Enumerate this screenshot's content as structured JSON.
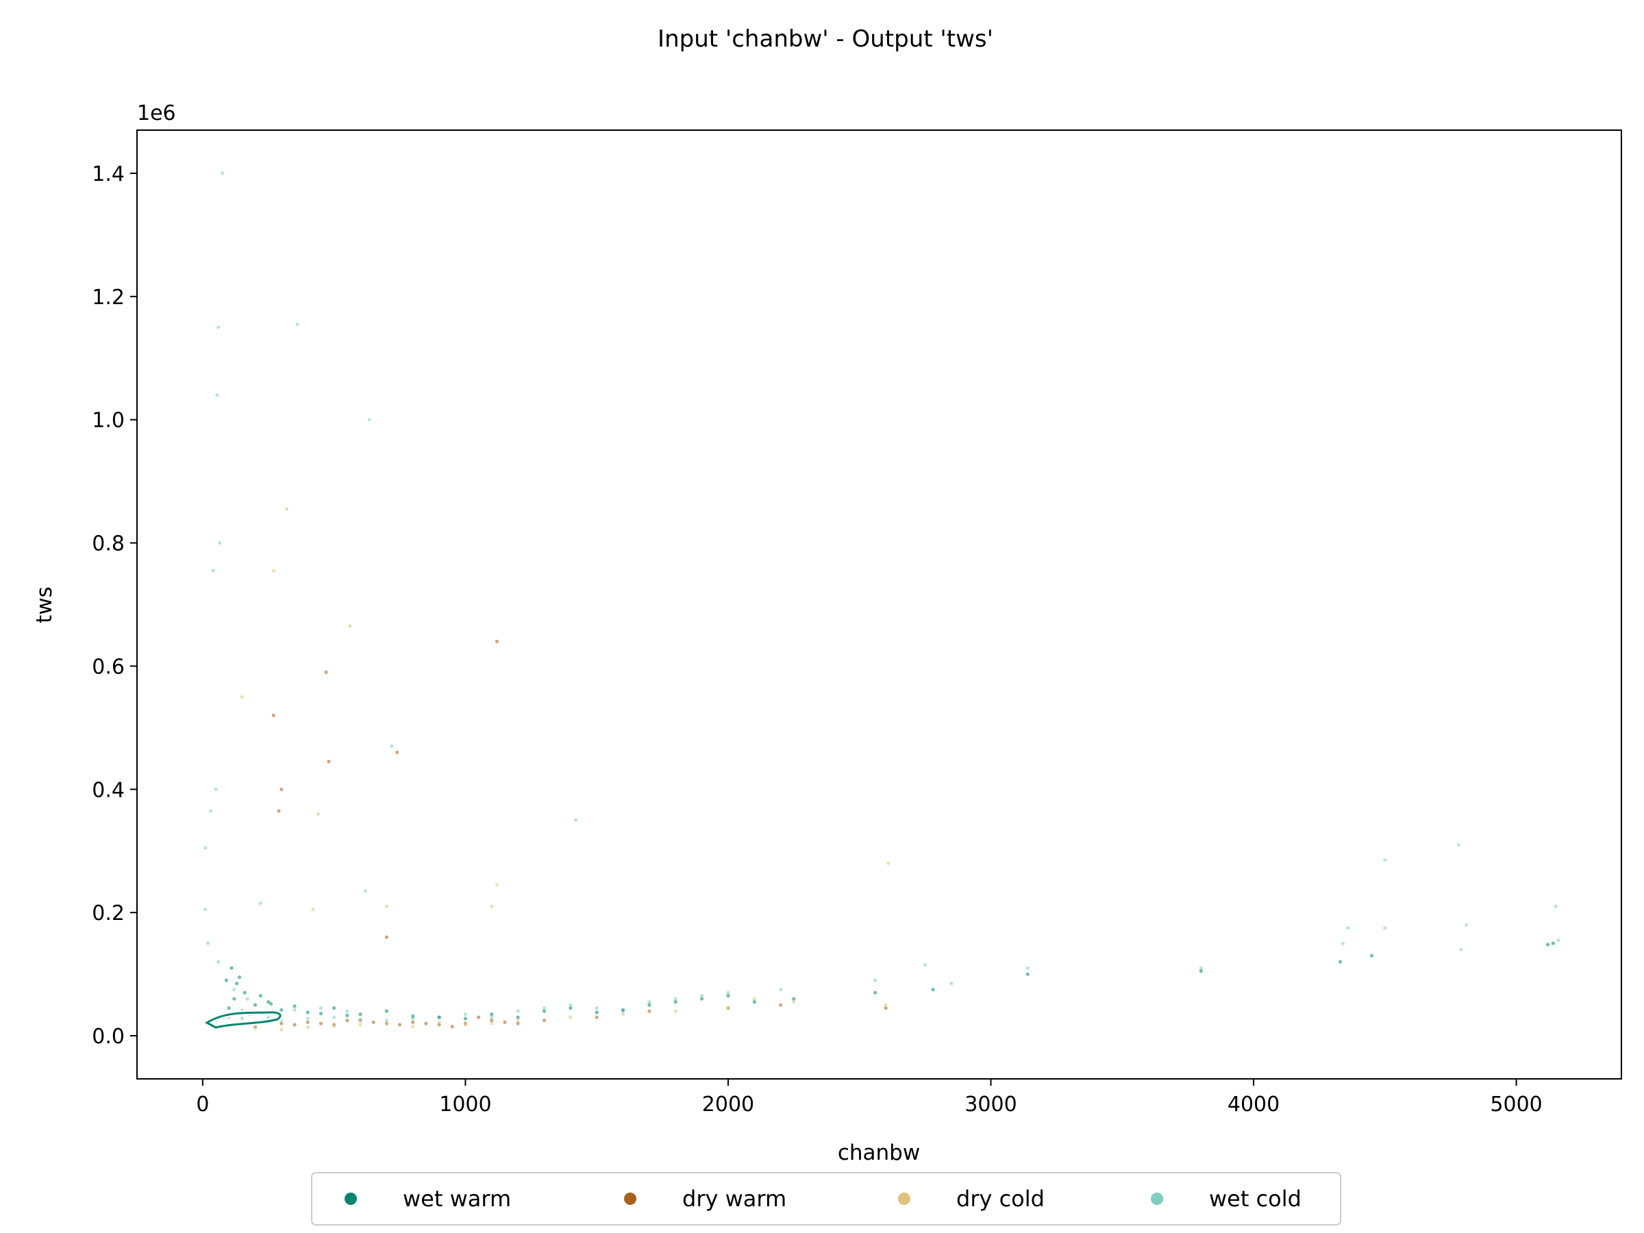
{
  "chart_data": {
    "type": "scatter",
    "title": "Input 'chanbw' - Output 'tws'",
    "xlabel": "chanbw",
    "ylabel": "tws",
    "y_offset_label": "1e6",
    "xlim": [
      -250,
      5400
    ],
    "ylim": [
      -70000,
      1470000
    ],
    "xticks": [
      0,
      1000,
      2000,
      3000,
      4000,
      5000
    ],
    "xtick_labels": [
      "0",
      "1000",
      "2000",
      "3000",
      "4000",
      "5000"
    ],
    "yticks": [
      0,
      200000,
      400000,
      600000,
      800000,
      1000000,
      1200000,
      1400000
    ],
    "ytick_labels": [
      "0.0",
      "0.2",
      "0.4",
      "0.6",
      "0.8",
      "1.0",
      "1.2",
      "1.4"
    ],
    "grid": false,
    "legend_position": "bottom-center",
    "series": [
      {
        "name": "wet warm",
        "color": "#018571",
        "points": [
          [
            100,
            45000
          ],
          [
            120,
            60000
          ],
          [
            150,
            40000
          ],
          [
            80,
            30000
          ],
          [
            200,
            50000
          ],
          [
            180,
            35000
          ],
          [
            250,
            55000
          ],
          [
            300,
            42000
          ],
          [
            400,
            38000
          ],
          [
            500,
            45000
          ],
          [
            600,
            35000
          ],
          [
            700,
            40000
          ],
          [
            800,
            32000
          ],
          [
            900,
            30000
          ],
          [
            1000,
            28000
          ],
          [
            1100,
            35000
          ],
          [
            1200,
            30000
          ],
          [
            1300,
            40000
          ],
          [
            1400,
            45000
          ],
          [
            1500,
            38000
          ],
          [
            1600,
            42000
          ],
          [
            1700,
            50000
          ],
          [
            1800,
            55000
          ],
          [
            1900,
            60000
          ],
          [
            2000,
            65000
          ],
          [
            2100,
            55000
          ],
          [
            2250,
            60000
          ],
          [
            2560,
            70000
          ],
          [
            2780,
            75000
          ],
          [
            3140,
            100000
          ],
          [
            3800,
            105000
          ],
          [
            4330,
            120000
          ],
          [
            4450,
            130000
          ],
          [
            5120,
            148000
          ],
          [
            5140,
            150000
          ],
          [
            90,
            90000
          ],
          [
            110,
            110000
          ],
          [
            130,
            85000
          ],
          [
            160,
            70000
          ],
          [
            140,
            95000
          ],
          [
            220,
            65000
          ],
          [
            260,
            52000
          ],
          [
            350,
            48000
          ],
          [
            450,
            36000
          ],
          [
            550,
            33000
          ]
        ]
      },
      {
        "name": "dry warm",
        "color": "#a6611a",
        "points": [
          [
            200,
            15000
          ],
          [
            300,
            20000
          ],
          [
            400,
            22000
          ],
          [
            500,
            18000
          ],
          [
            600,
            25000
          ],
          [
            700,
            20000
          ],
          [
            800,
            22000
          ],
          [
            900,
            18000
          ],
          [
            1000,
            20000
          ],
          [
            1100,
            25000
          ],
          [
            1150,
            22000
          ],
          [
            1050,
            30000
          ],
          [
            950,
            15000
          ],
          [
            850,
            20000
          ],
          [
            750,
            18000
          ],
          [
            650,
            22000
          ],
          [
            550,
            25000
          ],
          [
            450,
            20000
          ],
          [
            350,
            18000
          ],
          [
            250,
            25000
          ],
          [
            150,
            20000
          ],
          [
            1200,
            20000
          ],
          [
            1300,
            25000
          ],
          [
            1500,
            30000
          ],
          [
            1700,
            40000
          ],
          [
            2000,
            45000
          ],
          [
            2200,
            50000
          ],
          [
            2600,
            45000
          ],
          [
            270,
            520000
          ],
          [
            480,
            445000
          ],
          [
            740,
            460000
          ],
          [
            300,
            400000
          ],
          [
            290,
            365000
          ],
          [
            700,
            160000
          ],
          [
            1120,
            640000
          ],
          [
            470,
            590000
          ]
        ]
      },
      {
        "name": "dry cold",
        "color": "#dfc27d",
        "points": [
          [
            100,
            15000
          ],
          [
            200,
            12000
          ],
          [
            300,
            10000
          ],
          [
            400,
            14000
          ],
          [
            500,
            16000
          ],
          [
            600,
            18000
          ],
          [
            700,
            20000
          ],
          [
            800,
            15000
          ],
          [
            900,
            22000
          ],
          [
            1000,
            18000
          ],
          [
            1100,
            20000
          ],
          [
            1200,
            25000
          ],
          [
            1400,
            30000
          ],
          [
            1600,
            35000
          ],
          [
            1800,
            40000
          ],
          [
            2000,
            45000
          ],
          [
            2100,
            60000
          ],
          [
            2250,
            55000
          ],
          [
            2600,
            50000
          ],
          [
            2610,
            280000
          ],
          [
            320,
            855000
          ],
          [
            560,
            665000
          ],
          [
            270,
            755000
          ],
          [
            440,
            360000
          ],
          [
            1120,
            245000
          ],
          [
            1100,
            210000
          ],
          [
            700,
            210000
          ],
          [
            420,
            205000
          ],
          [
            150,
            550000
          ]
        ]
      },
      {
        "name": "wet cold",
        "color": "#80cdc1",
        "points": [
          [
            20,
            20000
          ],
          [
            50,
            25000
          ],
          [
            80,
            35000
          ],
          [
            100,
            30000
          ],
          [
            150,
            28000
          ],
          [
            200,
            22000
          ],
          [
            250,
            30000
          ],
          [
            300,
            25000
          ],
          [
            400,
            28000
          ],
          [
            500,
            30000
          ],
          [
            600,
            27000
          ],
          [
            700,
            25000
          ],
          [
            800,
            28000
          ],
          [
            900,
            30000
          ],
          [
            1000,
            35000
          ],
          [
            1100,
            30000
          ],
          [
            1200,
            40000
          ],
          [
            1300,
            45000
          ],
          [
            1400,
            50000
          ],
          [
            1500,
            45000
          ],
          [
            1600,
            40000
          ],
          [
            1700,
            55000
          ],
          [
            1800,
            60000
          ],
          [
            1900,
            65000
          ],
          [
            2000,
            70000
          ],
          [
            2200,
            75000
          ],
          [
            2560,
            90000
          ],
          [
            2750,
            115000
          ],
          [
            2850,
            85000
          ],
          [
            3140,
            110000
          ],
          [
            3800,
            110000
          ],
          [
            4340,
            150000
          ],
          [
            4360,
            175000
          ],
          [
            4500,
            285000
          ],
          [
            4500,
            175000
          ],
          [
            4780,
            310000
          ],
          [
            4810,
            180000
          ],
          [
            4790,
            140000
          ],
          [
            5150,
            210000
          ],
          [
            5160,
            155000
          ],
          [
            75,
            1400000
          ],
          [
            60,
            1150000
          ],
          [
            360,
            1155000
          ],
          [
            55,
            1040000
          ],
          [
            635,
            1000000
          ],
          [
            65,
            800000
          ],
          [
            40,
            755000
          ],
          [
            720,
            470000
          ],
          [
            1420,
            350000
          ],
          [
            620,
            235000
          ],
          [
            220,
            215000
          ],
          [
            50,
            400000
          ],
          [
            30,
            365000
          ],
          [
            10,
            305000
          ],
          [
            10,
            205000
          ],
          [
            20,
            150000
          ],
          [
            60,
            120000
          ],
          [
            120,
            75000
          ],
          [
            170,
            60000
          ],
          [
            350,
            42000
          ],
          [
            450,
            45000
          ],
          [
            550,
            40000
          ]
        ]
      }
    ]
  }
}
